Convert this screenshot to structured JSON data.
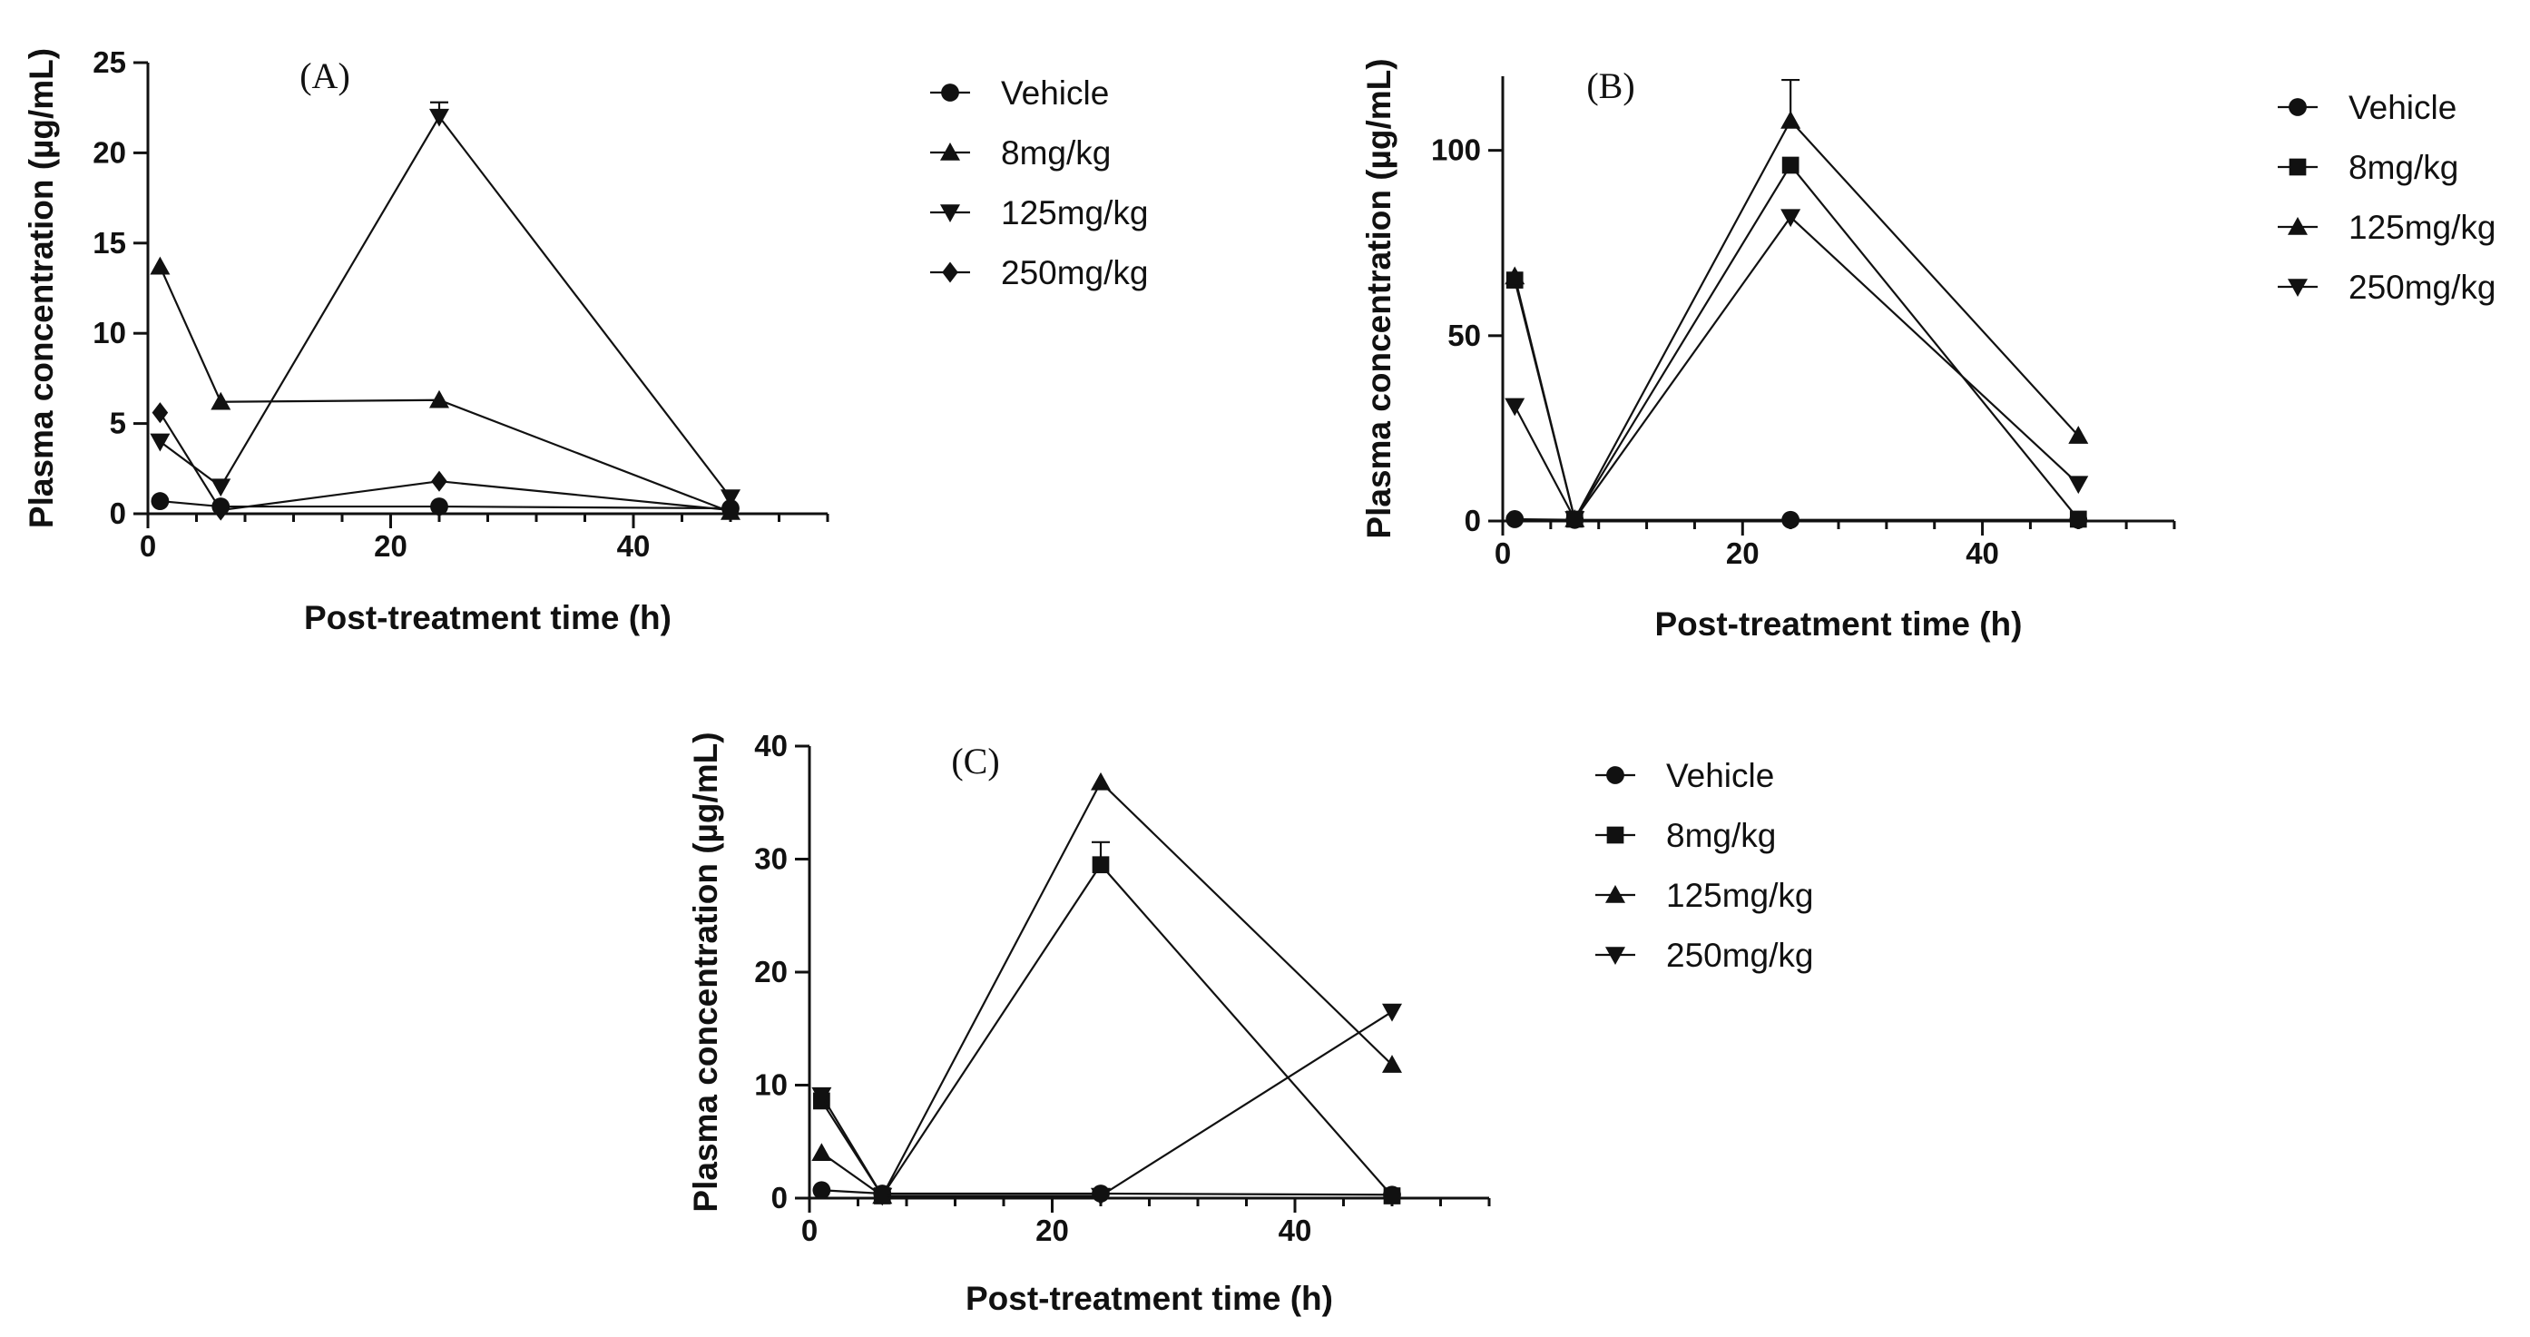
{
  "chart_data": [
    {
      "type": "line",
      "panel": "(A)",
      "xlabel": "Post-treatment time (h)",
      "ylabel": "Plasma concentration (µg/mL)",
      "xlim": [
        0,
        56
      ],
      "ylim": [
        0,
        25
      ],
      "xticks": [
        0,
        20,
        40
      ],
      "yticks": [
        0,
        5,
        10,
        15,
        20,
        25
      ],
      "x": [
        1,
        6,
        24,
        48
      ],
      "series": [
        {
          "name": "Vehicle",
          "marker": "circle",
          "values": [
            0.7,
            0.4,
            0.4,
            0.3
          ],
          "err": [
            0,
            0,
            0,
            0
          ]
        },
        {
          "name": "8mg/kg",
          "marker": "triangle-up",
          "values": [
            13.7,
            6.2,
            6.3,
            0.1
          ],
          "err": [
            0,
            0,
            0,
            0
          ]
        },
        {
          "name": "125mg/kg",
          "marker": "triangle-down",
          "values": [
            4.0,
            1.5,
            22.0,
            0.9
          ],
          "err": [
            0,
            0,
            0.8,
            0
          ]
        },
        {
          "name": "250mg/kg",
          "marker": "diamond",
          "values": [
            5.6,
            0.2,
            1.8,
            0.2
          ],
          "err": [
            0,
            0,
            0,
            0
          ]
        }
      ]
    },
    {
      "type": "line",
      "panel": "(B)",
      "xlabel": "Post-treatment time (h)",
      "ylabel": "Plasma concentration (µg/mL)",
      "xlim": [
        0,
        56
      ],
      "ylim": [
        0,
        120
      ],
      "xticks": [
        0,
        20,
        40
      ],
      "yticks": [
        0,
        50,
        100
      ],
      "x": [
        1,
        6,
        24,
        48
      ],
      "series": [
        {
          "name": "Vehicle",
          "marker": "circle",
          "values": [
            0.5,
            0.3,
            0.3,
            0.3
          ],
          "err": [
            0,
            0,
            0,
            0
          ]
        },
        {
          "name": "8mg/kg",
          "marker": "square",
          "values": [
            65,
            0.5,
            96,
            0.5
          ],
          "err": [
            0,
            0,
            0,
            0
          ]
        },
        {
          "name": "125mg/kg",
          "marker": "triangle-up",
          "values": [
            66,
            0.5,
            108,
            23
          ],
          "err": [
            0,
            0,
            11,
            0
          ]
        },
        {
          "name": "250mg/kg",
          "marker": "triangle-down",
          "values": [
            31,
            0.5,
            82,
            10
          ],
          "err": [
            0,
            0,
            0,
            0
          ]
        }
      ]
    },
    {
      "type": "line",
      "panel": "(C)",
      "xlabel": "Post-treatment time (h)",
      "ylabel": "Plasma concentration (µg/mL)",
      "xlim": [
        0,
        56
      ],
      "ylim": [
        0,
        40
      ],
      "xticks": [
        0,
        20,
        40
      ],
      "yticks": [
        0,
        10,
        20,
        30,
        40
      ],
      "x": [
        1,
        6,
        24,
        48
      ],
      "series": [
        {
          "name": "Vehicle",
          "marker": "circle",
          "values": [
            0.7,
            0.4,
            0.4,
            0.3
          ],
          "err": [
            0,
            0,
            0,
            0
          ]
        },
        {
          "name": "8mg/kg",
          "marker": "square",
          "values": [
            8.6,
            0.2,
            29.5,
            0.2
          ],
          "err": [
            0,
            0,
            2,
            0
          ]
        },
        {
          "name": "125mg/kg",
          "marker": "triangle-up",
          "values": [
            4.0,
            0.2,
            36.8,
            11.8
          ],
          "err": [
            0,
            0,
            0,
            0
          ]
        },
        {
          "name": "250mg/kg",
          "marker": "triangle-down",
          "values": [
            9.1,
            0.2,
            0.2,
            16.5
          ],
          "err": [
            0,
            0,
            0,
            0
          ]
        }
      ]
    }
  ]
}
